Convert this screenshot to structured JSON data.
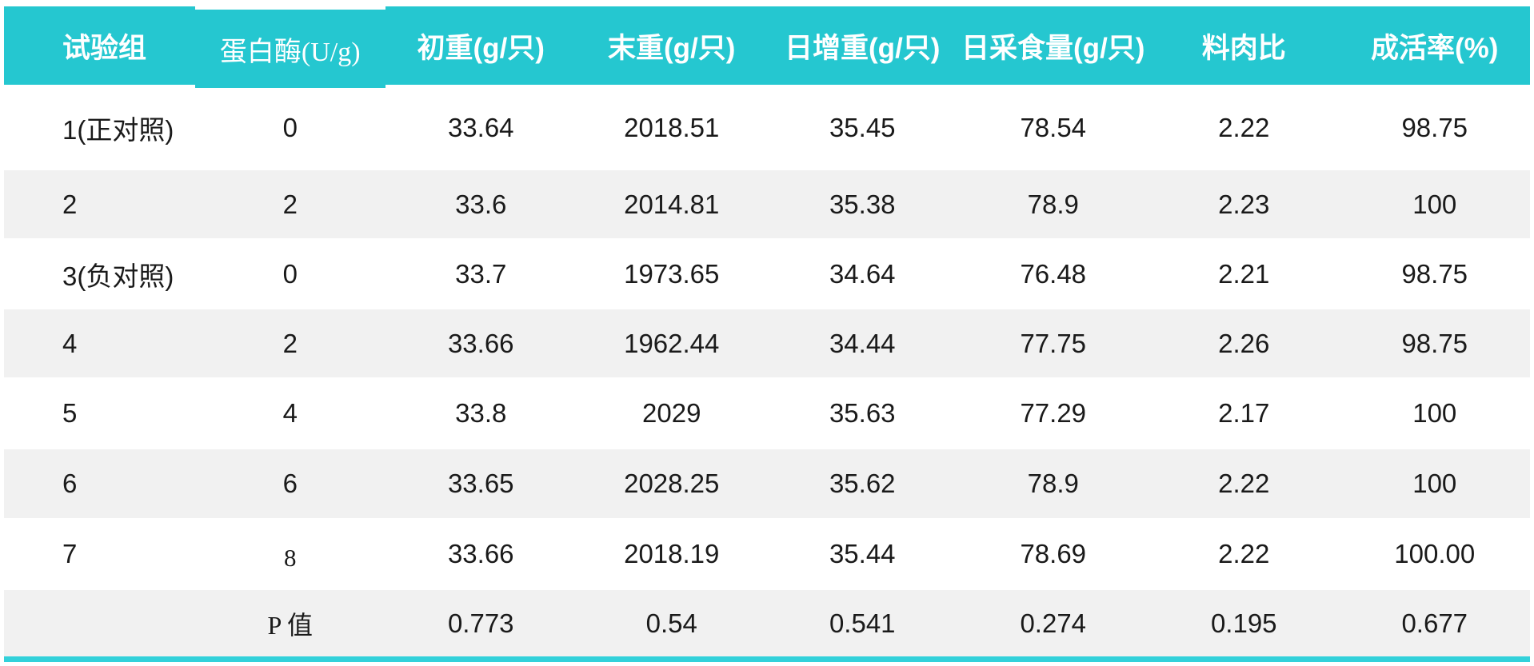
{
  "colors": {
    "header_bg": "#25c7d0",
    "header_text": "#ffffff",
    "stripe_bg": "#f1f1f1",
    "body_text": "#1a1a1a",
    "bottom_bar": "#32d1da"
  },
  "chart_data": {
    "type": "table",
    "columns": [
      "试验组",
      "蛋白酶(U/g)",
      "初重(g/只)",
      "末重(g/只)",
      "日增重(g/只)",
      "日采食量(g/只)",
      "料肉比",
      "成活率(%)"
    ],
    "rows": [
      [
        "1(正对照)",
        "0",
        "33.64",
        "2018.51",
        "35.45",
        "78.54",
        "2.22",
        "98.75"
      ],
      [
        "2",
        "2",
        "33.6",
        "2014.81",
        "35.38",
        "78.9",
        "2.23",
        "100"
      ],
      [
        "3(负对照)",
        "0",
        "33.7",
        "1973.65",
        "34.64",
        "76.48",
        "2.21",
        "98.75"
      ],
      [
        "4",
        "2",
        "33.66",
        "1962.44",
        "34.44",
        "77.75",
        "2.26",
        "98.75"
      ],
      [
        "5",
        "4",
        "33.8",
        "2029",
        "35.63",
        "77.29",
        "2.17",
        "100"
      ],
      [
        "6",
        "6",
        "33.65",
        "2028.25",
        "35.62",
        "78.9",
        "2.22",
        "100"
      ],
      [
        "7",
        "8",
        "33.66",
        "2018.19",
        "35.44",
        "78.69",
        "2.22",
        "100.00"
      ]
    ],
    "footer_row": [
      "",
      "P 值",
      "0.773",
      "0.54",
      "0.541",
      "0.274",
      "0.195",
      "0.677"
    ],
    "layout": {
      "columns_equal_width": true,
      "first_column_align": "left",
      "other_columns_align": "center",
      "zebra_striping": true
    }
  }
}
